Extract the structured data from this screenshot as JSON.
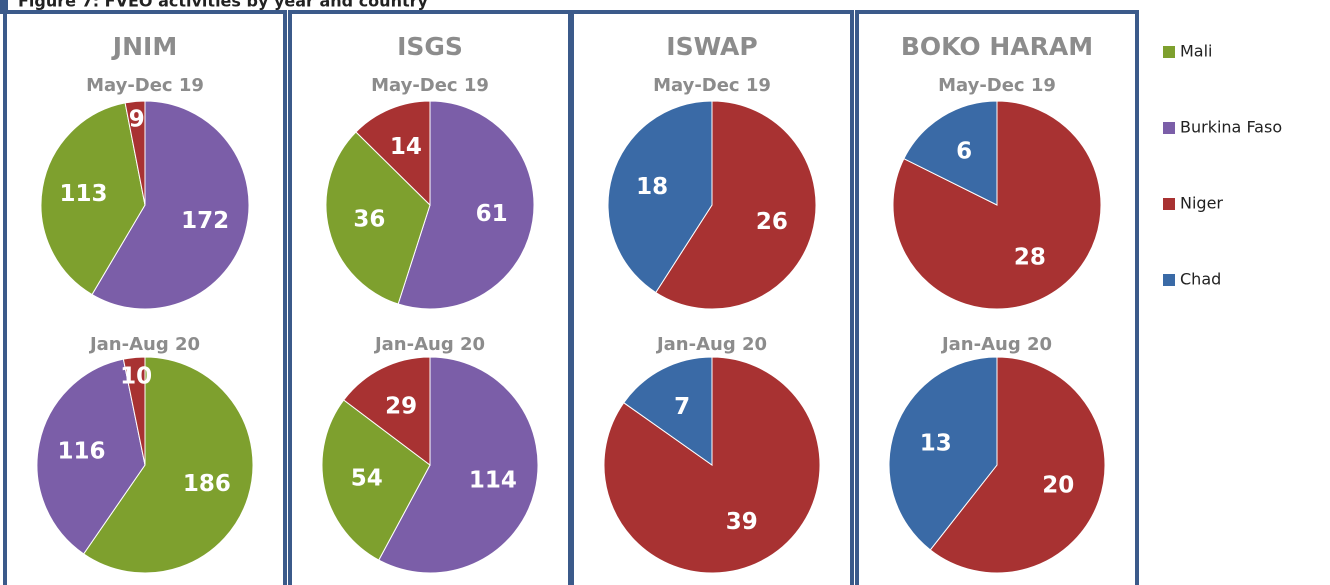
{
  "title": "Figure 7: FVEO activities by year and country",
  "legend": [
    {
      "name": "Mali",
      "color": "#7ea02e"
    },
    {
      "name": "Burkina Faso",
      "color": "#7b5ea8"
    },
    {
      "name": "Niger",
      "color": "#a83232"
    },
    {
      "name": "Chad",
      "color": "#3a6aa6"
    }
  ],
  "panels": [
    {
      "title": "JNIM",
      "chart_data": [
        {
          "type": "pie",
          "subtitle": "May-Dec 19",
          "categories": [
            "Burkina Faso",
            "Mali",
            "Niger"
          ],
          "values": [
            172,
            113,
            9
          ]
        },
        {
          "type": "pie",
          "subtitle": "Jan-Aug 20",
          "categories": [
            "Mali",
            "Burkina Faso",
            "Niger"
          ],
          "values": [
            186,
            116,
            10
          ]
        }
      ]
    },
    {
      "title": "ISGS",
      "chart_data": [
        {
          "type": "pie",
          "subtitle": "May-Dec 19",
          "categories": [
            "Burkina Faso",
            "Mali",
            "Niger"
          ],
          "values": [
            61,
            36,
            14
          ]
        },
        {
          "type": "pie",
          "subtitle": "Jan-Aug 20",
          "categories": [
            "Burkina Faso",
            "Mali",
            "Niger"
          ],
          "values": [
            114,
            54,
            29
          ]
        }
      ]
    },
    {
      "title": "ISWAP",
      "chart_data": [
        {
          "type": "pie",
          "subtitle": "May-Dec 19",
          "categories": [
            "Niger",
            "Chad"
          ],
          "values": [
            26,
            18
          ]
        },
        {
          "type": "pie",
          "subtitle": "Jan-Aug 20",
          "categories": [
            "Niger",
            "Chad"
          ],
          "values": [
            39,
            7
          ]
        }
      ]
    },
    {
      "title": "BOKO HARAM",
      "chart_data": [
        {
          "type": "pie",
          "subtitle": "May-Dec 19",
          "categories": [
            "Niger",
            "Chad"
          ],
          "values": [
            28,
            6
          ]
        },
        {
          "type": "pie",
          "subtitle": "Jan-Aug 20",
          "categories": [
            "Niger",
            "Chad"
          ],
          "values": [
            20,
            13
          ]
        }
      ]
    }
  ]
}
